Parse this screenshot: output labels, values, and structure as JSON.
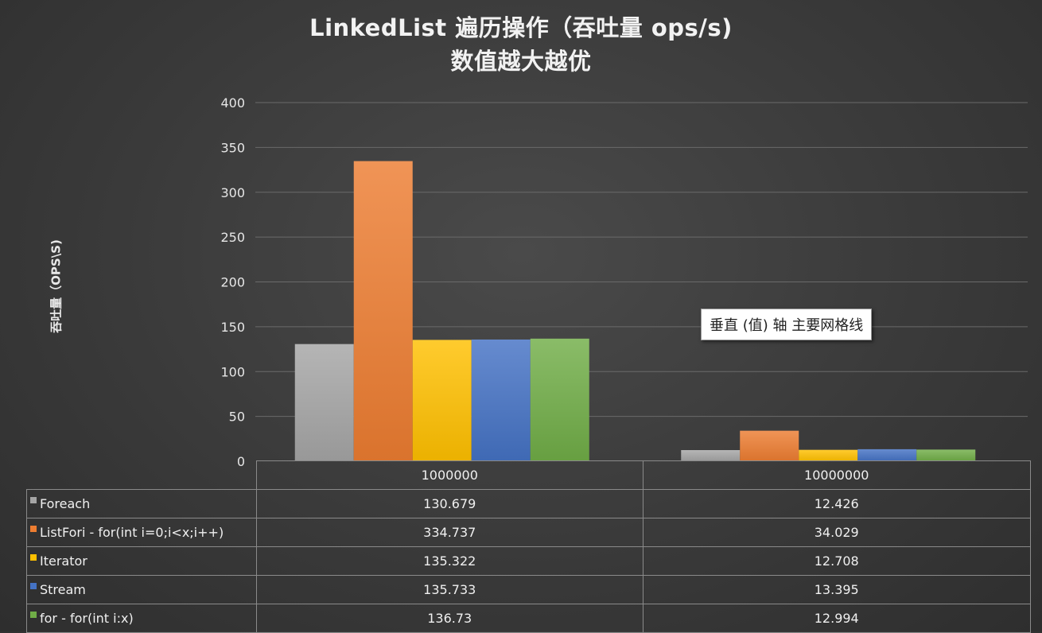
{
  "chart_data": {
    "type": "bar",
    "title": [
      "LinkedList 遍历操作（吞吐量 ops/s)",
      "数值越大越优"
    ],
    "ylabel": "吞吐量（OPS\\S)",
    "xlabel": "",
    "ylim": [
      0,
      400
    ],
    "yticks": [
      "0",
      "50",
      "100",
      "150",
      "200",
      "250",
      "300",
      "350",
      "400"
    ],
    "grid": true,
    "categories": [
      "1000000",
      "10000000"
    ],
    "series": [
      {
        "name": "Foreach",
        "color": "#a5a5a5",
        "values": [
          130.679,
          12.426
        ],
        "labels": [
          "130.679",
          "12.426"
        ]
      },
      {
        "name": "ListFori - for(int i=0;i<x;i++)",
        "color": "#ed7d31",
        "values": [
          334.737,
          34.029
        ],
        "labels": [
          "334.737",
          "34.029"
        ]
      },
      {
        "name": "Iterator",
        "color": "#ffc000",
        "values": [
          135.322,
          12.708
        ],
        "labels": [
          "135.322",
          "12.708"
        ]
      },
      {
        "name": "Stream",
        "color": "#4472c4",
        "values": [
          135.733,
          13.395
        ],
        "labels": [
          "135.733",
          "13.395"
        ]
      },
      {
        "name": "for - for(int i:x)",
        "color": "#70ad47",
        "values": [
          136.73,
          12.994
        ],
        "labels": [
          "136.73",
          "12.994"
        ]
      }
    ],
    "tooltip": "垂直 (值) 轴 主要网格线"
  }
}
